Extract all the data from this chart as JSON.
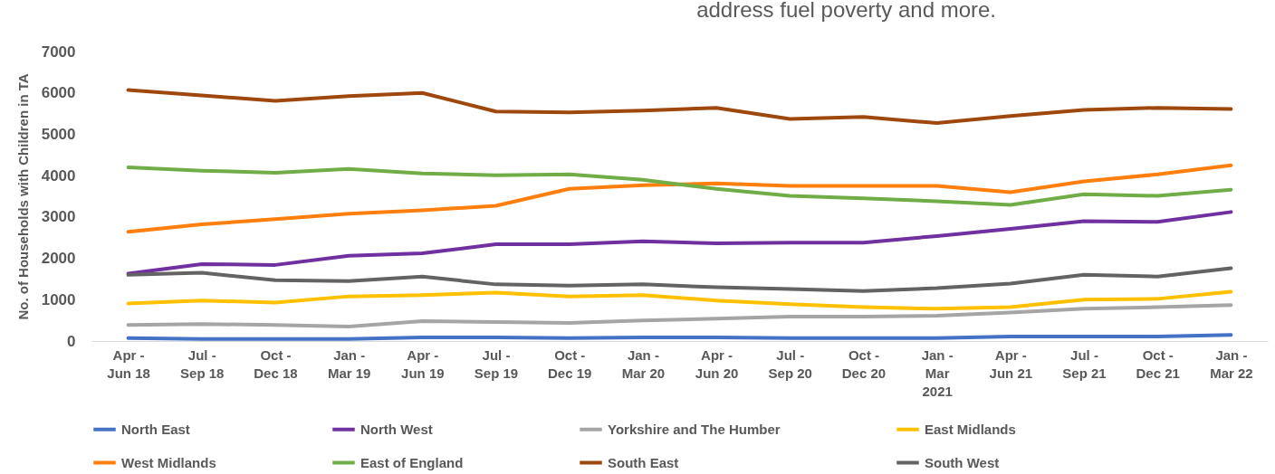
{
  "chart_data": {
    "type": "line",
    "annotations": [
      "address fuel poverty and more."
    ],
    "ylabel": "No. of Households with Children in TA",
    "categories": [
      "Apr - Jun 18",
      "Jul - Sep 18",
      "Oct - Dec 18",
      "Jan - Mar 19",
      "Apr - Jun 19",
      "Jul - Sep 19",
      "Oct - Dec 19",
      "Jan - Mar 20",
      "Apr - Jun 20",
      "Jul - Sep 20",
      "Oct - Dec 20",
      "Jan - Mar 2021",
      "Apr - Jun 21",
      "Jul - Sep 21",
      "Oct - Dec 21",
      "Jan - Mar 22"
    ],
    "ylim": [
      0,
      7000
    ],
    "yticks": [
      0,
      1000,
      2000,
      3000,
      4000,
      5000,
      6000,
      7000
    ],
    "grid": false,
    "legend": "bottom",
    "marker": "none",
    "line_style": "solid",
    "series": [
      {
        "name": "North East",
        "color": "#4472c4",
        "values": [
          70,
          50,
          50,
          50,
          90,
          90,
          70,
          90,
          90,
          70,
          70,
          70,
          110,
          110,
          110,
          150
        ]
      },
      {
        "name": "North West",
        "color": "#7030a0",
        "values": [
          1630,
          1860,
          1840,
          2060,
          2120,
          2340,
          2340,
          2410,
          2360,
          2380,
          2380,
          2540,
          2710,
          2900,
          2880,
          3120
        ]
      },
      {
        "name": "Yorkshire and The Humber",
        "color": "#a5a5a5",
        "values": [
          390,
          410,
          390,
          350,
          480,
          460,
          440,
          500,
          540,
          590,
          590,
          610,
          690,
          780,
          820,
          870
        ]
      },
      {
        "name": "East Midlands",
        "color": "#ffc000",
        "values": [
          910,
          980,
          930,
          1080,
          1110,
          1170,
          1080,
          1110,
          980,
          890,
          820,
          780,
          820,
          1000,
          1020,
          1190
        ]
      },
      {
        "name": "West Midlands",
        "color": "#ff7f0e",
        "values": [
          2640,
          2820,
          2950,
          3080,
          3160,
          3270,
          3680,
          3770,
          3810,
          3750,
          3750,
          3750,
          3600,
          3860,
          4030,
          4250
        ]
      },
      {
        "name": "East of England",
        "color": "#70ad47",
        "values": [
          4200,
          4120,
          4070,
          4160,
          4050,
          4010,
          4030,
          3900,
          3680,
          3510,
          3450,
          3380,
          3290,
          3550,
          3510,
          3660
        ]
      },
      {
        "name": "South East",
        "color": "#9e480e",
        "values": [
          6070,
          5940,
          5810,
          5920,
          6000,
          5550,
          5530,
          5570,
          5640,
          5370,
          5420,
          5270,
          5440,
          5590,
          5640,
          5610
        ]
      },
      {
        "name": "South West",
        "color": "#636363",
        "values": [
          1600,
          1650,
          1470,
          1450,
          1560,
          1370,
          1340,
          1370,
          1300,
          1260,
          1210,
          1280,
          1390,
          1600,
          1560,
          1760
        ]
      }
    ]
  }
}
